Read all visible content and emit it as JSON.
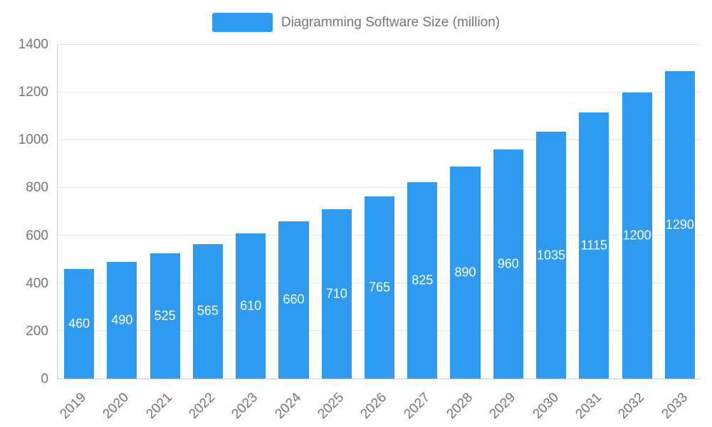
{
  "chart_data": {
    "type": "bar",
    "title": "Diagramming Software Size (million)",
    "categories": [
      "2019",
      "2020",
      "2021",
      "2022",
      "2023",
      "2024",
      "2025",
      "2026",
      "2027",
      "2028",
      "2029",
      "2030",
      "2031",
      "2032",
      "2033"
    ],
    "values": [
      460,
      490,
      525,
      565,
      610,
      660,
      710,
      765,
      825,
      890,
      960,
      1035,
      1115,
      1200,
      1290
    ],
    "xlabel": "",
    "ylabel": "",
    "ylim": [
      0,
      1400
    ],
    "yticks": [
      0,
      200,
      400,
      600,
      800,
      1000,
      1200,
      1400
    ],
    "grid": true,
    "legend_position": "top",
    "bar_color": "#2f9bf0",
    "value_label_color": "#ffffff",
    "axis_text_color": "#757575",
    "gridline_color": "#e6e6e6"
  }
}
